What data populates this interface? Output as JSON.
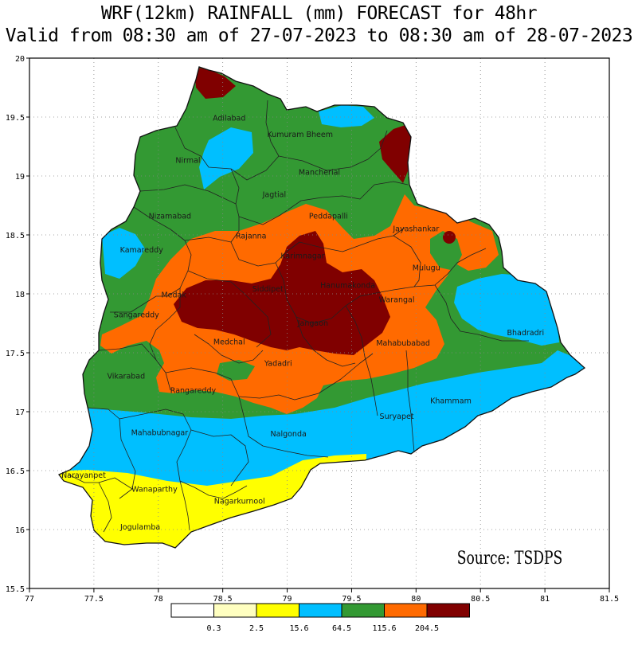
{
  "title_line1": "WRF(12km)  RAINFALL (mm) FORECAST for 48hr",
  "title_line2": "Valid from 08:30 am of  27-07-2023 to 08:30 am of 28-07-2023",
  "source": "Source: TSDPS",
  "axes": {
    "x_ticks": [
      "77",
      "77.5",
      "78",
      "78.5",
      "79",
      "79.5",
      "80",
      "80.5",
      "81",
      "81.5"
    ],
    "y_ticks": [
      "20",
      "19.5",
      "19",
      "18.5",
      "18",
      "17.5",
      "17",
      "16.5",
      "16",
      "15.5"
    ],
    "grid": "dotted"
  },
  "legend": {
    "labels": [
      "0.3",
      "2.5",
      "15.6",
      "64.5",
      "115.6",
      "204.5"
    ],
    "colors": [
      "#ffffff",
      "#ffffc0",
      "#ffff00",
      "#00bfff",
      "#339933",
      "#ff6a00",
      "#800000"
    ]
  },
  "districts": [
    {
      "name": "Adilabad",
      "lon": 78.55,
      "lat": 19.47
    },
    {
      "name": "Kumuram Bheem",
      "lon": 79.1,
      "lat": 19.33
    },
    {
      "name": "Nirmal",
      "lon": 78.23,
      "lat": 19.11
    },
    {
      "name": "Mancherial",
      "lon": 79.25,
      "lat": 19.01
    },
    {
      "name": "Jagtial",
      "lon": 78.9,
      "lat": 18.82
    },
    {
      "name": "Nizamabad",
      "lon": 78.09,
      "lat": 18.64
    },
    {
      "name": "Peddapalli",
      "lon": 79.32,
      "lat": 18.64
    },
    {
      "name": "Jayashankar",
      "lon": 80.0,
      "lat": 18.53
    },
    {
      "name": "Rajanna",
      "lon": 78.72,
      "lat": 18.47
    },
    {
      "name": "Kamareddy",
      "lon": 77.87,
      "lat": 18.35
    },
    {
      "name": "Karimnagar",
      "lon": 79.12,
      "lat": 18.3
    },
    {
      "name": "Mulugu",
      "lon": 80.08,
      "lat": 18.2
    },
    {
      "name": "Hanumakonda",
      "lon": 79.47,
      "lat": 18.05
    },
    {
      "name": "Siddipet",
      "lon": 78.85,
      "lat": 18.02
    },
    {
      "name": "Medak",
      "lon": 78.12,
      "lat": 17.97
    },
    {
      "name": "Warangal",
      "lon": 79.85,
      "lat": 17.93
    },
    {
      "name": "Sangareddy",
      "lon": 77.83,
      "lat": 17.8
    },
    {
      "name": "Jangaon",
      "lon": 79.2,
      "lat": 17.73
    },
    {
      "name": "Bhadradri",
      "lon": 80.85,
      "lat": 17.65
    },
    {
      "name": "Medchal",
      "lon": 78.55,
      "lat": 17.57
    },
    {
      "name": "Mahabubabad",
      "lon": 79.9,
      "lat": 17.56
    },
    {
      "name": "Yadadri",
      "lon": 78.93,
      "lat": 17.39
    },
    {
      "name": "Vikarabad",
      "lon": 77.75,
      "lat": 17.28
    },
    {
      "name": "Khammam",
      "lon": 80.27,
      "lat": 17.07
    },
    {
      "name": "Rangareddy",
      "lon": 78.27,
      "lat": 17.16
    },
    {
      "name": "Suryapet",
      "lon": 79.85,
      "lat": 16.94
    },
    {
      "name": "Mahabubnagar",
      "lon": 78.01,
      "lat": 16.8
    },
    {
      "name": "Nalgonda",
      "lon": 79.01,
      "lat": 16.79
    },
    {
      "name": "Narayanpet",
      "lon": 77.42,
      "lat": 16.44
    },
    {
      "name": "Wanaparthy",
      "lon": 77.97,
      "lat": 16.32
    },
    {
      "name": "Nagarkurnool",
      "lon": 78.63,
      "lat": 16.22
    },
    {
      "name": "Jogulamba",
      "lon": 77.86,
      "lat": 16.0
    }
  ]
}
